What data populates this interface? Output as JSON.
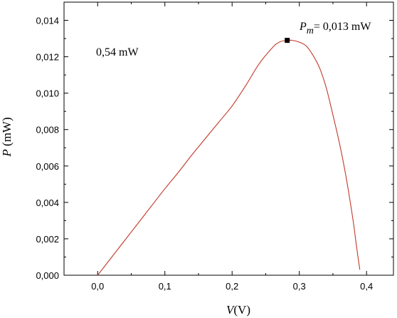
{
  "chart_data": {
    "type": "line",
    "xlabel_symbol": "V",
    "xlabel_unit": "(V)",
    "ylabel_symbol": "P",
    "ylabel_unit": "(mW)",
    "xlim": [
      -0.05,
      0.44
    ],
    "ylim": [
      0.0,
      0.015
    ],
    "x_ticks": [
      0.0,
      0.1,
      0.2,
      0.3,
      0.4
    ],
    "x_tick_labels": [
      "0,0",
      "0,1",
      "0,2",
      "0,3",
      "0,4"
    ],
    "y_ticks": [
      0.0,
      0.002,
      0.004,
      0.006,
      0.008,
      0.01,
      0.012,
      0.014
    ],
    "y_tick_labels": [
      "0,000",
      "0,002",
      "0,004",
      "0,006",
      "0,008",
      "0,010",
      "0,012",
      "0,014"
    ],
    "grid": false,
    "series": [
      {
        "color": "#c0392b",
        "x": [
          0.0,
          0.02,
          0.04,
          0.06,
          0.08,
          0.1,
          0.12,
          0.14,
          0.16,
          0.18,
          0.2,
          0.22,
          0.24,
          0.26,
          0.27,
          0.28,
          0.29,
          0.3,
          0.31,
          0.32,
          0.33,
          0.34,
          0.35,
          0.36,
          0.37,
          0.38,
          0.385,
          0.39
        ],
        "y": [
          0.0,
          0.00095,
          0.0019,
          0.00285,
          0.0038,
          0.00475,
          0.00565,
          0.0066,
          0.0075,
          0.0084,
          0.0093,
          0.0104,
          0.0116,
          0.0125,
          0.0128,
          0.0129,
          0.0129,
          0.0128,
          0.0126,
          0.0121,
          0.0114,
          0.0103,
          0.0088,
          0.0072,
          0.0053,
          0.003,
          0.0016,
          0.0003
        ]
      }
    ],
    "marker_point": {
      "x": 0.282,
      "y": 0.0129
    },
    "annotations": {
      "pm_symbol": "P",
      "pm_subscript": "m",
      "pm_value": "= 0,013 mW",
      "left_label": "0,54 mW"
    }
  }
}
